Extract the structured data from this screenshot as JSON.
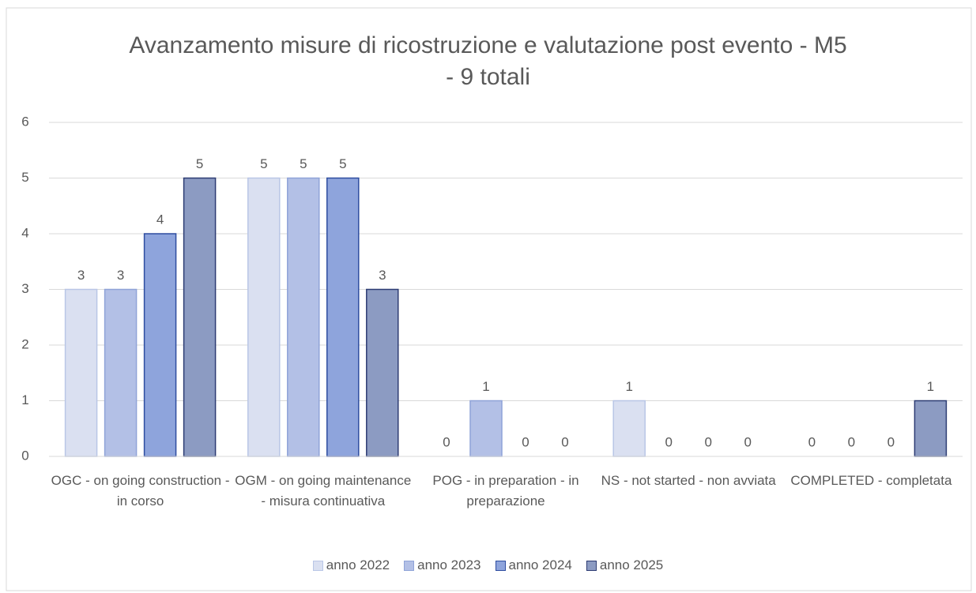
{
  "chart_data": {
    "type": "bar",
    "title": "Avanzamento misure di ricostruzione e valutazione post evento - M5 - 9 totali",
    "categories": [
      "OGC - on going construction - in corso",
      "OGM - on going maintenance - misura continuativa",
      "POG - in preparation - in preparazione",
      "NS - not started - non avviata",
      "COMPLETED - completata"
    ],
    "series": [
      {
        "name": "anno 2022",
        "color": "#dae0f1",
        "edgecolor": "#b9c6e6",
        "values": [
          3,
          5,
          0,
          1,
          0
        ]
      },
      {
        "name": "anno 2023",
        "color": "#b3c0e6",
        "edgecolor": "#8fa3d8",
        "values": [
          3,
          5,
          1,
          0,
          0
        ]
      },
      {
        "name": "anno 2024",
        "color": "#8ea4dc",
        "edgecolor": "#2e4da0",
        "values": [
          4,
          5,
          0,
          0,
          0
        ]
      },
      {
        "name": "anno 2025",
        "color": "#8c9bc2",
        "edgecolor": "#2d3c73",
        "values": [
          5,
          3,
          0,
          0,
          1
        ]
      }
    ],
    "ylim": [
      0,
      6
    ],
    "yticks": [
      0,
      1,
      2,
      3,
      4,
      5,
      6
    ],
    "grid": true,
    "legend": "bottom"
  }
}
